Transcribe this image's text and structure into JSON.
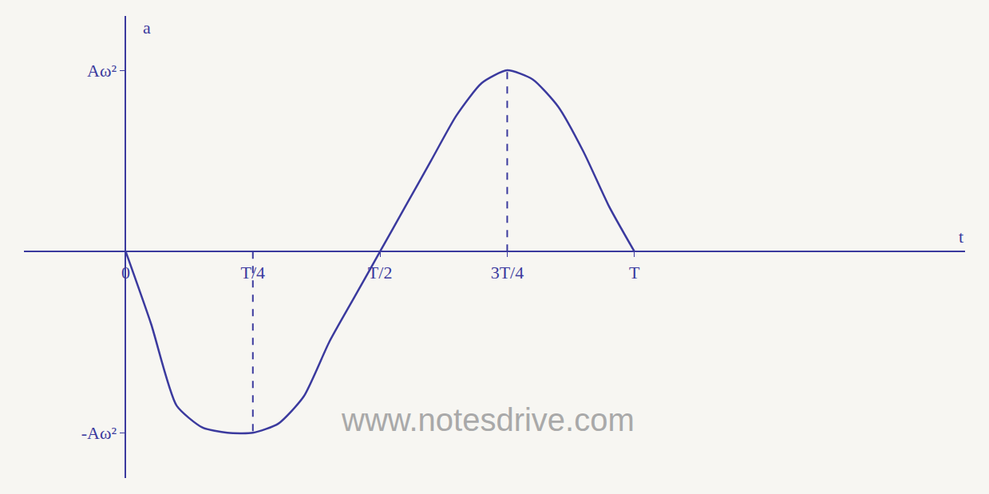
{
  "chart_data": {
    "type": "line",
    "x_label": "t",
    "y_label": "a",
    "x": [
      0,
      0.05,
      0.1,
      0.15,
      0.2,
      0.25,
      0.3,
      0.35,
      0.4,
      0.45,
      0.5,
      0.55,
      0.6,
      0.65,
      0.7,
      0.75,
      0.8,
      0.85,
      0.9,
      0.95,
      1
    ],
    "values": [
      0,
      -0.4,
      -0.85,
      -0.97,
      -1.0,
      -1.0,
      -0.95,
      -0.8,
      -0.5,
      -0.25,
      0,
      0.25,
      0.5,
      0.75,
      0.93,
      1.0,
      0.95,
      0.8,
      0.55,
      0.25,
      0
    ],
    "color": "#3b3a9e",
    "xlim": [
      -0.2,
      1.65
    ],
    "xticks": [
      {
        "value": 0,
        "label": "0"
      },
      {
        "value": 0.25,
        "label": "T/4"
      },
      {
        "value": 0.5,
        "label": "T/2"
      },
      {
        "value": 0.75,
        "label": "3T/4"
      },
      {
        "value": 1,
        "label": "T"
      }
    ],
    "ylim": [
      -1.25,
      1.3
    ],
    "yticks": [
      {
        "value": -1,
        "label": "-Aω²"
      },
      {
        "value": 1,
        "label": "Aω²"
      }
    ],
    "grid": false,
    "annotations": [
      {
        "text": "www.notesdrive.com"
      }
    ]
  }
}
